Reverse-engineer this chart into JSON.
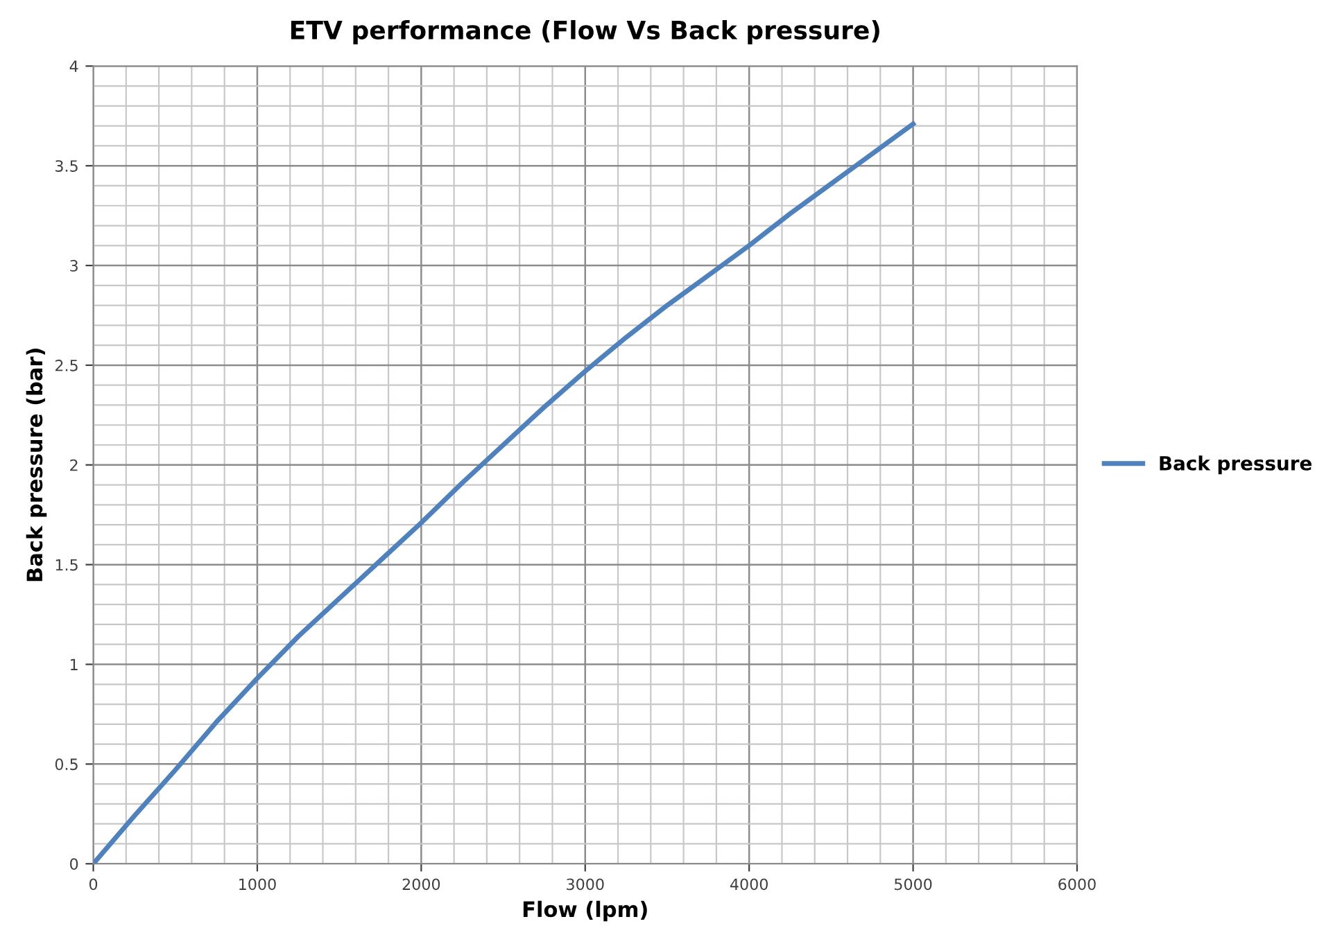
{
  "chart_data": {
    "type": "line",
    "title": "ETV performance (Flow Vs Back pressure)",
    "xlabel": "Flow (lpm)",
    "ylabel": "Back pressure (bar)",
    "x": [
      0,
      250,
      500,
      750,
      1000,
      1250,
      1500,
      1750,
      2000,
      2250,
      2500,
      2750,
      3000,
      3250,
      3500,
      3750,
      4000,
      4250,
      4500,
      4750,
      5000
    ],
    "series": [
      {
        "name": "Back pressure",
        "color": "#4f81bd",
        "values": [
          0,
          0.24,
          0.47,
          0.71,
          0.93,
          1.14,
          1.33,
          1.52,
          1.71,
          1.91,
          2.1,
          2.29,
          2.47,
          2.64,
          2.8,
          2.95,
          3.1,
          3.26,
          3.41,
          3.56,
          3.71
        ]
      }
    ],
    "xlim": [
      0,
      6000
    ],
    "xticks": [
      0,
      1000,
      2000,
      3000,
      4000,
      5000,
      6000
    ],
    "ylim": [
      0,
      4
    ],
    "yticks": [
      0,
      0.5,
      1,
      1.5,
      2,
      2.5,
      3,
      3.5,
      4
    ],
    "grid": true,
    "legend": "right",
    "marker": "none",
    "line_style": "solid"
  }
}
